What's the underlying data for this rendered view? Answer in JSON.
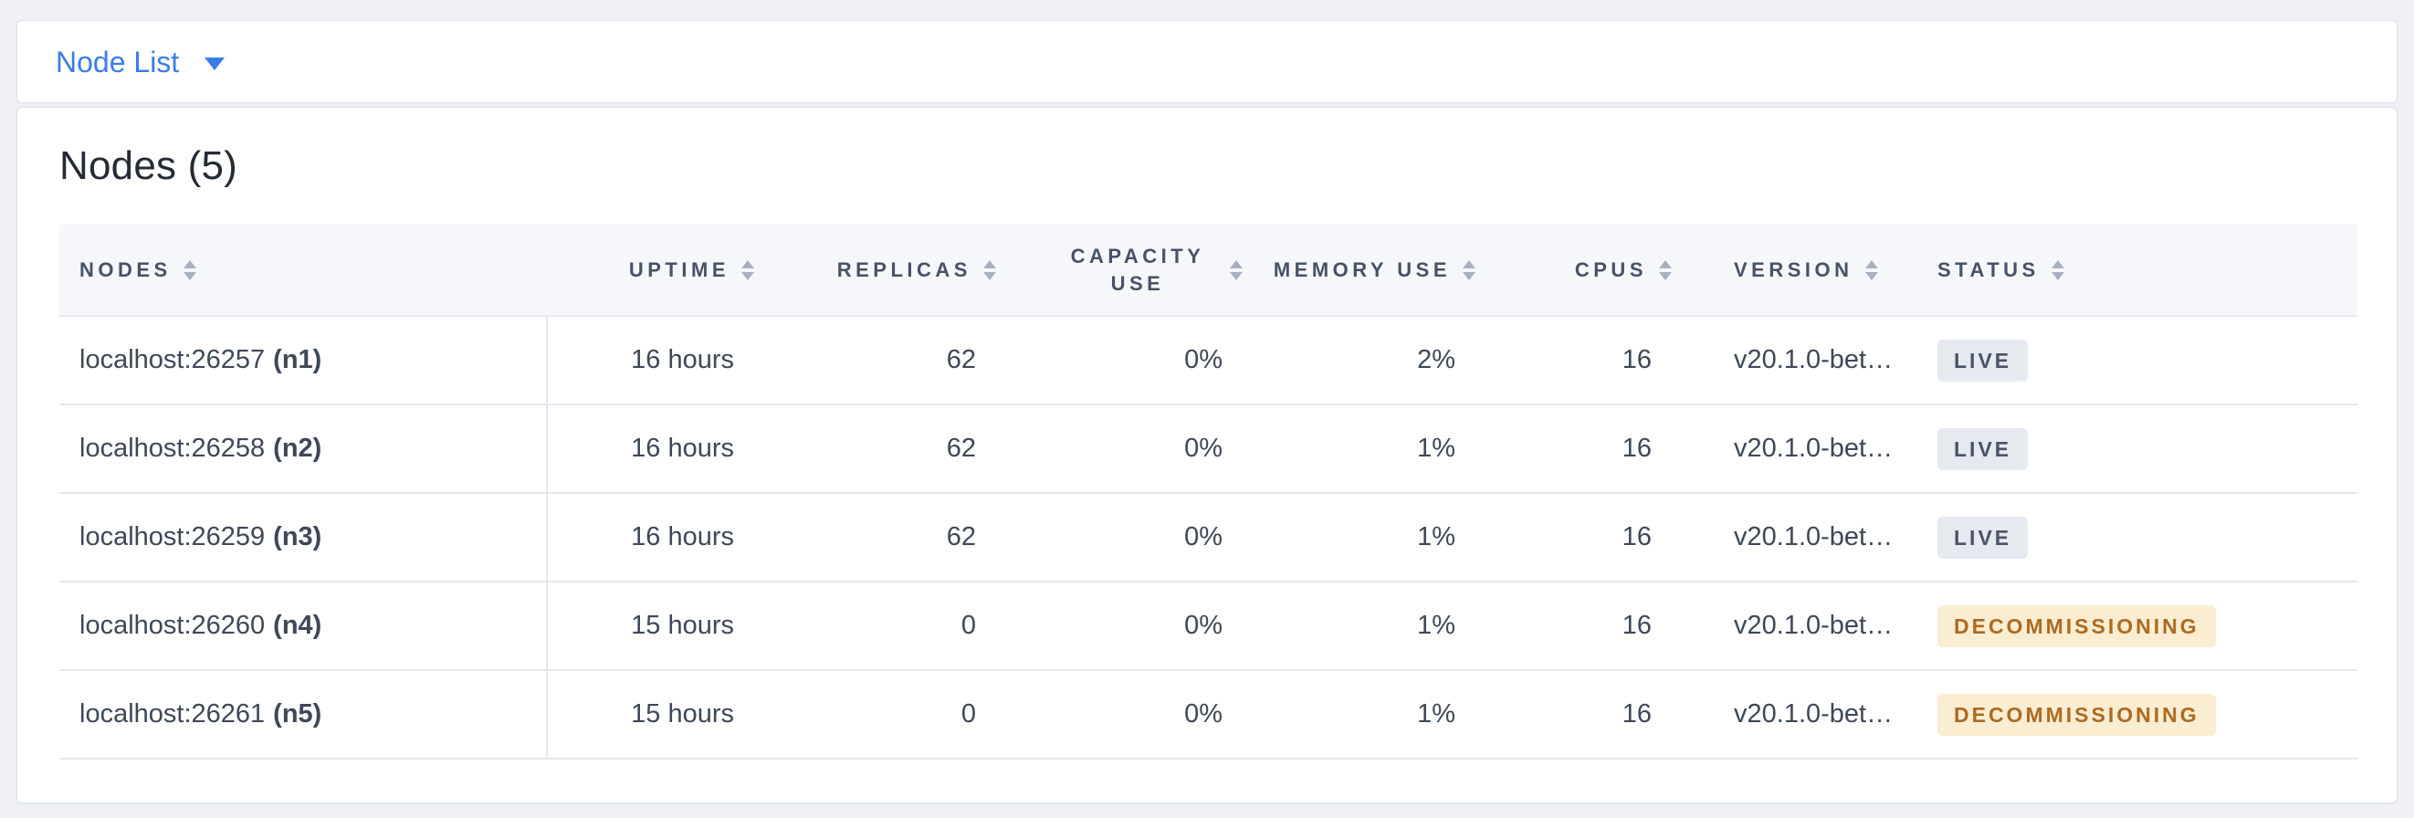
{
  "view_selector": {
    "label": "Node List",
    "accent_color": "#3b7de8"
  },
  "page": {
    "title": "Nodes (5)"
  },
  "table": {
    "columns": [
      {
        "label": "NODES",
        "align": "left",
        "sort_icon": "sort-arrows-icon"
      },
      {
        "label": "UPTIME",
        "align": "right",
        "sort_icon": "sort-arrows-icon"
      },
      {
        "label": "REPLICAS",
        "align": "right",
        "sort_icon": "sort-arrows-icon"
      },
      {
        "label": "CAPACITY USE",
        "align": "right",
        "sort_icon": "sort-arrows-icon",
        "wrap": true
      },
      {
        "label": "MEMORY USE",
        "align": "right",
        "sort_icon": "sort-arrows-icon"
      },
      {
        "label": "CPUS",
        "align": "right",
        "sort_icon": "sort-arrows-icon"
      },
      {
        "label": "VERSION",
        "align": "left",
        "sort_icon": "sort-arrows-icon"
      },
      {
        "label": "STATUS",
        "align": "left",
        "sort_icon": "sort-arrows-icon"
      }
    ],
    "rows": [
      {
        "address": "localhost:26257",
        "name": "(n1)",
        "uptime": "16 hours",
        "replicas": "62",
        "capacity_use": "0%",
        "memory_use": "2%",
        "cpus": "16",
        "version": "v20.1.0-bet…",
        "status": "LIVE"
      },
      {
        "address": "localhost:26258",
        "name": "(n2)",
        "uptime": "16 hours",
        "replicas": "62",
        "capacity_use": "0%",
        "memory_use": "1%",
        "cpus": "16",
        "version": "v20.1.0-bet…",
        "status": "LIVE"
      },
      {
        "address": "localhost:26259",
        "name": "(n3)",
        "uptime": "16 hours",
        "replicas": "62",
        "capacity_use": "0%",
        "memory_use": "1%",
        "cpus": "16",
        "version": "v20.1.0-bet…",
        "status": "LIVE"
      },
      {
        "address": "localhost:26260",
        "name": "(n4)",
        "uptime": "15 hours",
        "replicas": "0",
        "capacity_use": "0%",
        "memory_use": "1%",
        "cpus": "16",
        "version": "v20.1.0-bet…",
        "status": "DECOMMISSIONING"
      },
      {
        "address": "localhost:26261",
        "name": "(n5)",
        "uptime": "15 hours",
        "replicas": "0",
        "capacity_use": "0%",
        "memory_use": "1%",
        "cpus": "16",
        "version": "v20.1.0-bet…",
        "status": "DECOMMISSIONING"
      }
    ],
    "status_styles": {
      "LIVE": {
        "bg": "#e6e9f0",
        "color": "#4a5468"
      },
      "DECOMMISSIONING": {
        "bg": "#faedd1",
        "color": "#ad6a21"
      }
    }
  }
}
